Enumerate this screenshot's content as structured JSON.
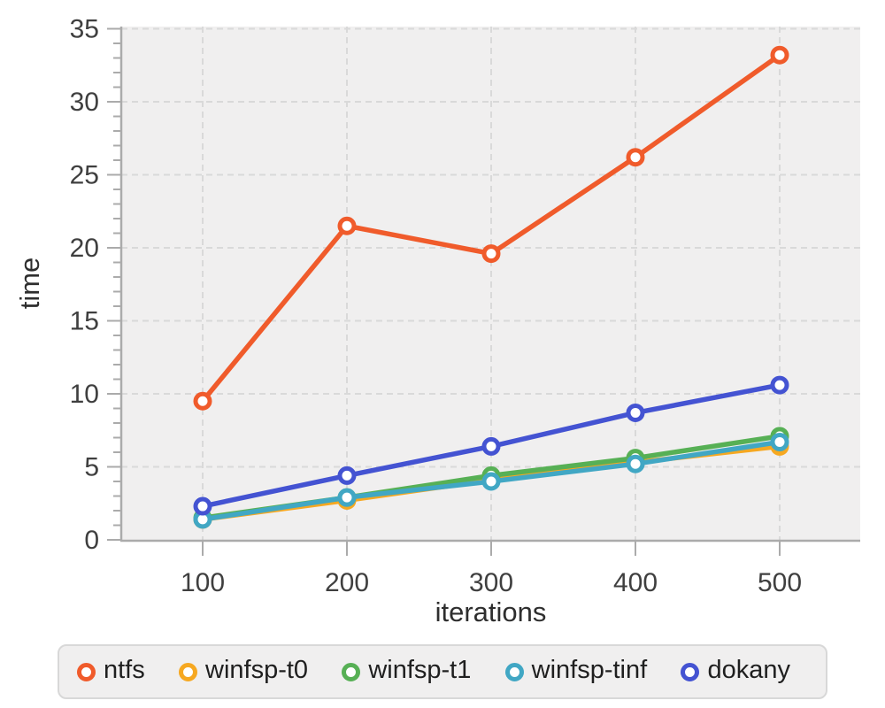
{
  "chart_data": {
    "type": "line",
    "title": "",
    "xlabel": "iterations",
    "ylabel": "time",
    "x": [
      100,
      200,
      300,
      400,
      500
    ],
    "x_tick_labels": [
      "100",
      "200",
      "300",
      "400",
      "500"
    ],
    "y_tick_labels": [
      "0",
      "5",
      "10",
      "15",
      "20",
      "25",
      "30",
      "35"
    ],
    "y_major_ticks": [
      0,
      5,
      10,
      15,
      20,
      25,
      30,
      35
    ],
    "y_minor_step": 1,
    "xlim": [
      44,
      556
    ],
    "ylim": [
      0,
      35
    ],
    "grid": true,
    "legend_position": "bottom",
    "series": [
      {
        "name": "ntfs",
        "color": "#f05b2b",
        "values": [
          9.5,
          21.5,
          19.6,
          26.2,
          33.2
        ]
      },
      {
        "name": "winfsp-t0",
        "color": "#f6a821",
        "values": [
          1.4,
          2.7,
          4.1,
          5.3,
          6.4
        ]
      },
      {
        "name": "winfsp-t1",
        "color": "#57b055",
        "values": [
          1.5,
          2.9,
          4.4,
          5.6,
          7.1
        ]
      },
      {
        "name": "winfsp-tinf",
        "color": "#41a7c4",
        "values": [
          1.4,
          2.9,
          4.0,
          5.2,
          6.7
        ]
      },
      {
        "name": "dokany",
        "color": "#4453d2",
        "values": [
          2.3,
          4.4,
          6.4,
          8.7,
          10.6
        ]
      }
    ]
  },
  "colors": {
    "plot_bg": "#f0efef",
    "grid": "#d9d9d9",
    "axis": "#ababab",
    "tick_text": "#3f3f3f",
    "axis_title_text": "#2e2e2e"
  }
}
